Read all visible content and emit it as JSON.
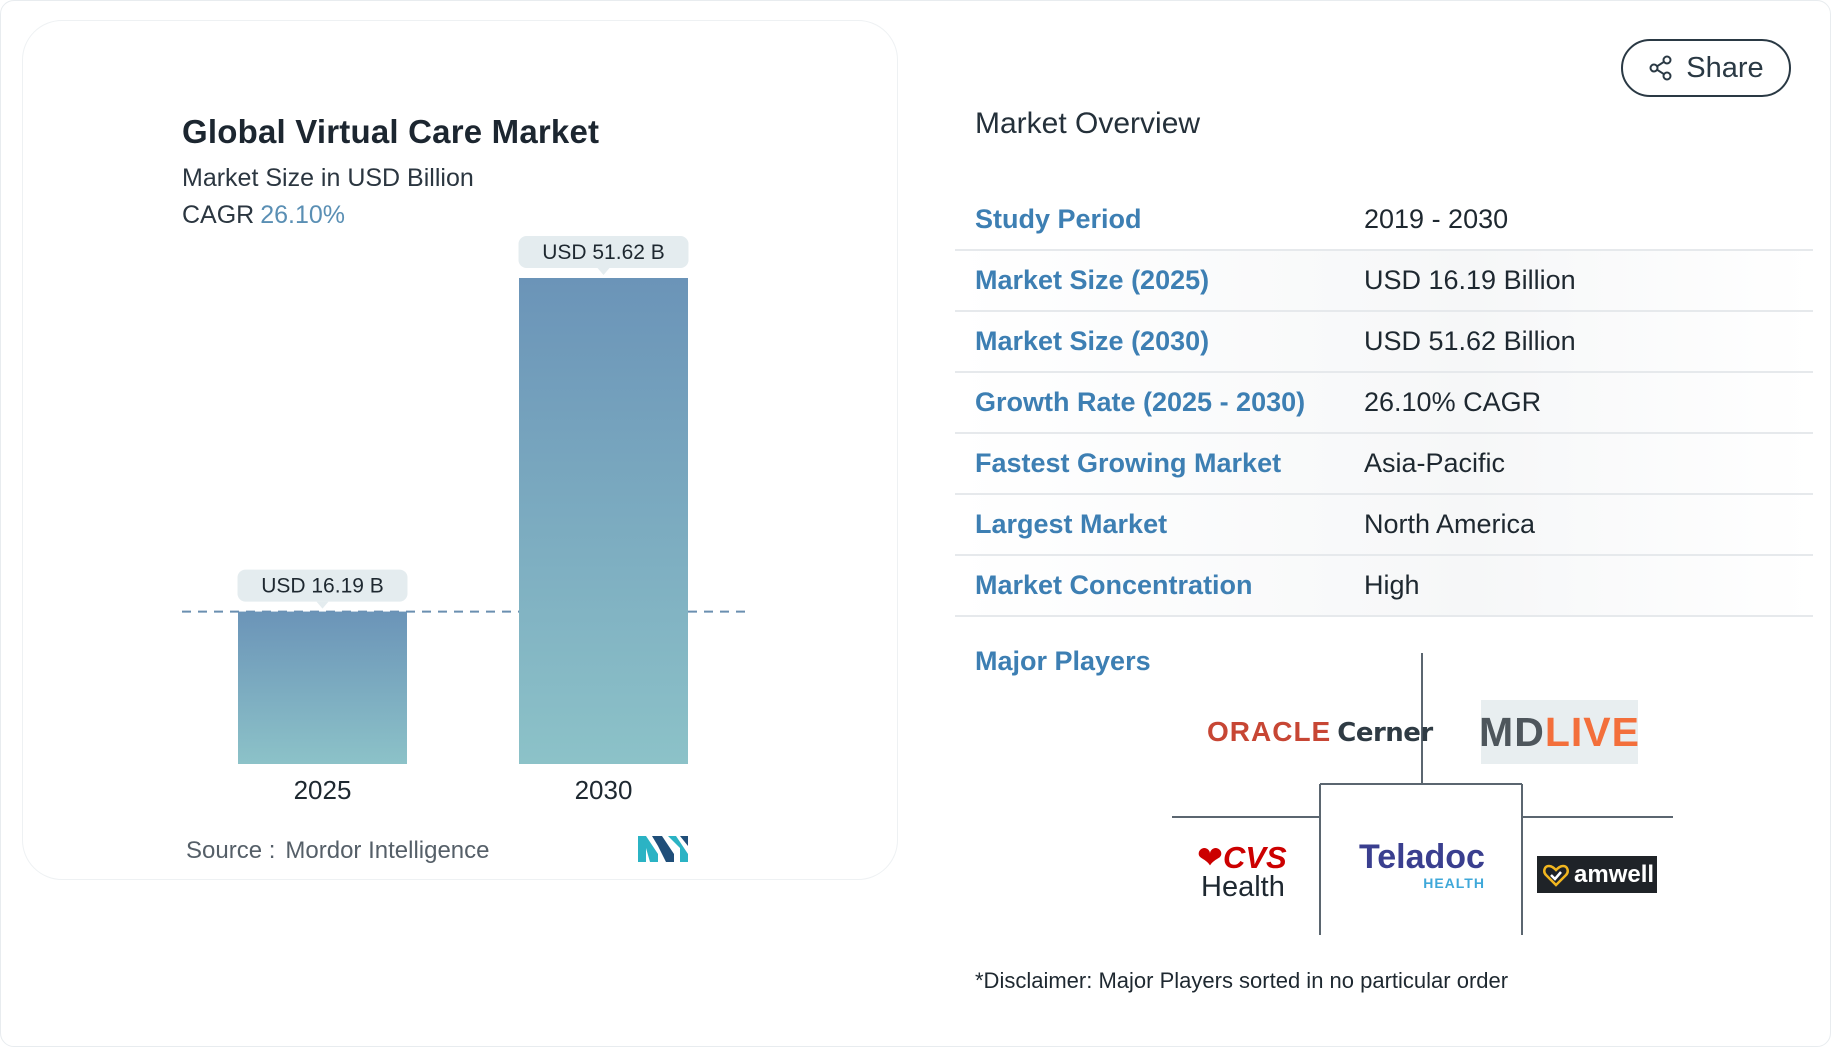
{
  "chart_data": {
    "type": "bar",
    "title": "Global Virtual Care Market",
    "subtitle": "Market Size in USD Billion",
    "cagr_label": "CAGR",
    "cagr_value": "26.10%",
    "categories": [
      "2025",
      "2030"
    ],
    "values": [
      16.19,
      51.62
    ],
    "data_labels": [
      "USD 16.19 B",
      "USD 51.62 B"
    ],
    "ylim": [
      0,
      51.62
    ],
    "grid": false,
    "reference_line": "dashed line at 2025 value",
    "colors": {
      "bar_top": "#6b94b8",
      "bar_bottom": "#8cc2c8",
      "label_bg": "#e4ecef"
    }
  },
  "source": {
    "label": "Source :",
    "name": "Mordor Intelligence"
  },
  "share": {
    "label": "Share"
  },
  "overview": {
    "title": "Market Overview",
    "rows": [
      {
        "label": "Study Period",
        "value": "2019 - 2030"
      },
      {
        "label": "Market Size (2025)",
        "value": "USD 16.19 Billion"
      },
      {
        "label": "Market Size (2030)",
        "value": "USD 51.62 Billion"
      },
      {
        "label": "Growth Rate (2025 - 2030)",
        "value": "26.10% CAGR"
      },
      {
        "label": "Fastest Growing Market",
        "value": "Asia-Pacific"
      },
      {
        "label": "Largest Market",
        "value": "North America"
      },
      {
        "label": "Market Concentration",
        "value": "High"
      }
    ]
  },
  "players": {
    "label": "Major Players",
    "oracle": {
      "brand": "ORACLE",
      "sub": "Cerner"
    },
    "mdlive": {
      "md": "MD",
      "live": "LIVE"
    },
    "cvs": {
      "top": "CVS",
      "bottom": "Health"
    },
    "teladoc": {
      "name": "Teladoc",
      "sub": "HEALTH"
    },
    "amwell": {
      "name": "amwell"
    }
  },
  "disclaimer": "*Disclaimer: Major Players sorted in no particular order",
  "colors": {
    "accent": "#3d7fb3",
    "text": "#1e2830"
  }
}
